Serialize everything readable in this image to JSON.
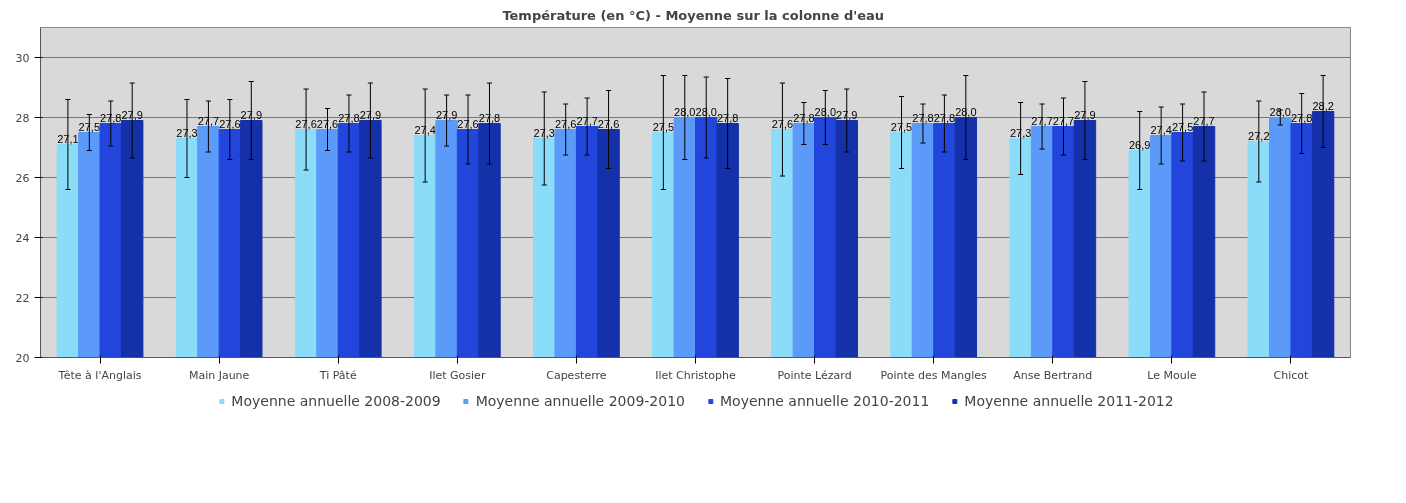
{
  "chart_data": {
    "type": "bar",
    "title": "Température  (en °C) - Moyenne sur la colonne d'eau",
    "categories": [
      "Tête à l'Anglais",
      "Main Jaune",
      "Ti Pâté",
      "Ilet Gosier",
      "Capesterre",
      "Ilet Christophe",
      "Pointe Lézard",
      "Pointe des Mangles",
      "Anse Bertrand",
      "Le Moule",
      "Chicot"
    ],
    "series": [
      {
        "name": "Moyenne annuelle 2008-2009",
        "color": "#8bdcf9",
        "values": [
          27.1,
          27.3,
          27.6,
          27.4,
          27.3,
          27.5,
          27.6,
          27.5,
          27.3,
          26.9,
          27.2
        ],
        "value_labels": [
          "27,1",
          "27,3",
          "27,6",
          "27,4",
          "27,3",
          "27,5",
          "27,6",
          "27,5",
          "27,3",
          "26,9",
          "27,2"
        ],
        "errors": [
          1.5,
          1.3,
          1.35,
          1.55,
          1.55,
          1.9,
          1.55,
          1.2,
          1.2,
          1.3,
          1.35
        ]
      },
      {
        "name": "Moyenne annuelle 2009-2010",
        "color": "#5b9af8",
        "values": [
          27.5,
          27.7,
          27.6,
          27.9,
          27.6,
          28.0,
          27.8,
          27.8,
          27.7,
          27.4,
          28.0
        ],
        "value_labels": [
          "27,5",
          "27,7",
          "27,6",
          "27,9",
          "27,6",
          "28,0",
          "27,8",
          "27,8",
          "27,7",
          "27,4",
          "28,0"
        ],
        "errors": [
          0.6,
          0.85,
          0.7,
          0.85,
          0.85,
          1.4,
          0.7,
          0.65,
          0.75,
          0.95,
          0.25
        ]
      },
      {
        "name": "Moyenne annuelle 2010-2011",
        "color": "#2246dc",
        "values": [
          27.8,
          27.6,
          27.8,
          27.6,
          27.7,
          28.0,
          28.0,
          27.8,
          27.7,
          27.5,
          27.8
        ],
        "value_labels": [
          "27,8",
          "27,6",
          "27,8",
          "27,6",
          "27,7",
          "28,0",
          "28,0",
          "27,8",
          "27,7",
          "27,5",
          "27,8"
        ],
        "errors": [
          0.75,
          1.0,
          0.95,
          1.15,
          0.95,
          1.35,
          0.9,
          0.95,
          0.95,
          0.95,
          1.0
        ]
      },
      {
        "name": "Moyenne annuelle 2011-2012",
        "color": "#1431aa",
        "values": [
          27.9,
          27.9,
          27.9,
          27.8,
          27.6,
          27.8,
          27.9,
          28.0,
          27.9,
          27.7,
          28.2
        ],
        "value_labels": [
          "27,9",
          "27,9",
          "27,9",
          "27,8",
          "27,6",
          "27,8",
          "27,9",
          "28,0",
          "27,9",
          "27,7",
          "28,2"
        ],
        "errors": [
          1.25,
          1.3,
          1.25,
          1.35,
          1.3,
          1.5,
          1.05,
          1.4,
          1.3,
          1.15,
          1.2
        ]
      }
    ],
    "ylim": [
      20,
      31
    ],
    "yticks": [
      20,
      22,
      24,
      26,
      28,
      30
    ],
    "grid": "y",
    "legend": "bottom"
  }
}
